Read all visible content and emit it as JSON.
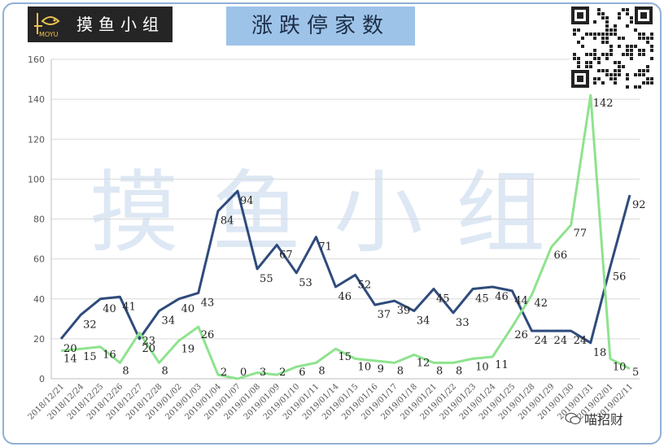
{
  "header": {
    "logo_name": "摸鱼小组",
    "logo_sub": "MOYU",
    "title": "涨跌停家数"
  },
  "watermark": "摸鱼小组",
  "footer": {
    "text": "喵招财"
  },
  "colors": {
    "series_up": "#2f4b7c",
    "series_down": "#8ee38e",
    "frame": "#8fb0d6",
    "title_bg": "#9ec3e8"
  },
  "chart_data": {
    "type": "line",
    "categories": [
      "2018/12/21",
      "2018/12/24",
      "2018/12/25",
      "2018/12/26",
      "2018/12/27",
      "2018/12/28",
      "2019/01/02",
      "2019/01/03",
      "2019/01/04",
      "2019/01/07",
      "2019/01/08",
      "2019/01/09",
      "2019/01/10",
      "2019/01/11",
      "2019/01/14",
      "2019/01/15",
      "2019/01/16",
      "2019/01/17",
      "2019/01/18",
      "2019/01/21",
      "2019/01/22",
      "2019/01/23",
      "2019/01/24",
      "2019/01/25",
      "2019/01/28",
      "2019/01/29",
      "2019/01/30",
      "2019/01/31",
      "2019/02/01",
      "2019/02/11"
    ],
    "series": [
      {
        "name": "",
        "color": "#2f4b7c",
        "values": [
          20,
          32,
          40,
          41,
          20,
          34,
          40,
          43,
          84,
          94,
          55,
          67,
          53,
          71,
          46,
          52,
          37,
          39,
          34,
          45,
          33,
          45,
          46,
          44,
          24,
          24,
          24,
          18,
          56,
          92
        ]
      },
      {
        "name": "",
        "color": "#8ee38e",
        "values": [
          14,
          15,
          16,
          8,
          23,
          8,
          19,
          26,
          2,
          0,
          3,
          2,
          6,
          8,
          15,
          10,
          9,
          8,
          12,
          8,
          8,
          10,
          11,
          26,
          42,
          66,
          77,
          142,
          10,
          5
        ]
      }
    ],
    "yticks": [
      0,
      20,
      40,
      60,
      80,
      100,
      120,
      140,
      160
    ],
    "ylim": [
      0,
      160
    ],
    "grid": true,
    "title": "",
    "xlabel": "",
    "ylabel": ""
  }
}
